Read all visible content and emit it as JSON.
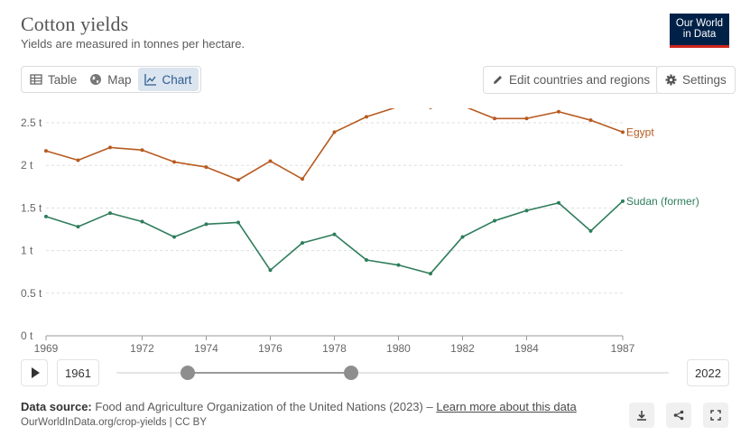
{
  "header": {
    "title": "Cotton yields",
    "subtitle": "Yields are measured in tonnes per hectare.",
    "logo_line1": "Our World",
    "logo_line2": "in Data"
  },
  "tabs": [
    {
      "label": "Table",
      "icon": "table-icon"
    },
    {
      "label": "Map",
      "icon": "globe-icon"
    },
    {
      "label": "Chart",
      "icon": "line-chart-icon",
      "active": true
    }
  ],
  "actions": {
    "edit_label": "Edit countries and regions",
    "settings_label": "Settings"
  },
  "timeline": {
    "start_label": "1961",
    "end_label": "2022"
  },
  "footer": {
    "source_label": "Data source:",
    "source_text": "Food and Agriculture Organization of the United Nations (2023) –",
    "learn_more": "Learn more about this data",
    "url": "OurWorldInData.org/crop-yields | CC BY"
  },
  "colors": {
    "egypt": "#b75b21",
    "sudan": "#2e7d5b",
    "accent": "#002147",
    "logo_bar": "#ce261e"
  },
  "chart_data": {
    "type": "line",
    "title": "Cotton yields",
    "subtitle": "Yields are measured in tonnes per hectare.",
    "x_ticks": [
      "1969",
      "1972",
      "1974",
      "1976",
      "1978",
      "1980",
      "1982",
      "1984",
      "1987"
    ],
    "y_ticks": [
      "0 t",
      "0.5 t",
      "1 t",
      "1.5 t",
      "2 t",
      "2.5 t"
    ],
    "xlim": [
      1969,
      1987
    ],
    "ylim": [
      0,
      2.8
    ],
    "grid": "horizontal",
    "x": [
      1969,
      1970,
      1971,
      1972,
      1973,
      1974,
      1975,
      1976,
      1977,
      1978,
      1979,
      1980,
      1981,
      1982,
      1983,
      1984,
      1985,
      1986,
      1987
    ],
    "series": [
      {
        "name": "Egypt",
        "values": [
          2.17,
          2.06,
          2.21,
          2.18,
          2.04,
          1.98,
          1.83,
          2.05,
          1.84,
          2.39,
          2.57,
          2.69,
          2.68,
          2.7,
          2.55,
          2.55,
          2.63,
          2.53,
          2.39
        ]
      },
      {
        "name": "Sudan (former)",
        "values": [
          1.4,
          1.28,
          1.44,
          1.34,
          1.16,
          1.31,
          1.33,
          0.77,
          1.09,
          1.19,
          0.89,
          0.83,
          0.73,
          1.16,
          1.35,
          1.47,
          1.56,
          1.23,
          1.58
        ]
      }
    ]
  }
}
